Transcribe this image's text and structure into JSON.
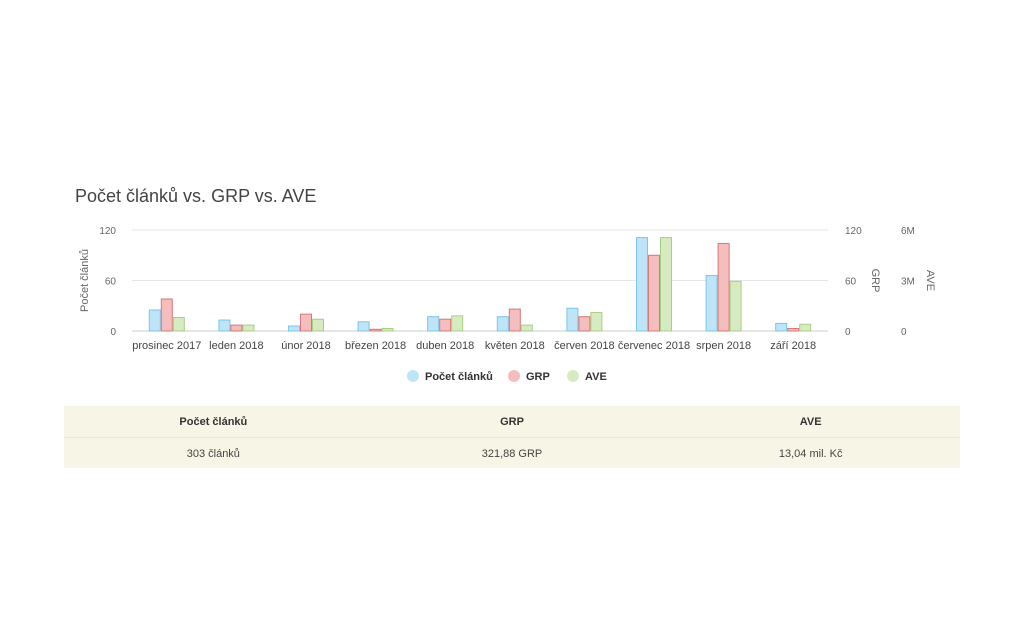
{
  "chart_data": {
    "type": "bar",
    "title": "Počet článků vs. GRP vs. AVE",
    "categories": [
      "prosinec 2017",
      "leden 2018",
      "únor 2018",
      "březen 2018",
      "duben 2018",
      "květen 2018",
      "červen 2018",
      "červenec 2018",
      "srpen 2018",
      "září 2018"
    ],
    "series": [
      {
        "name": "Počet článků",
        "axis": "left",
        "color": "#bde4f7",
        "stroke": "#7cc6e8",
        "values": [
          25,
          13,
          6,
          11,
          17,
          17,
          27,
          111,
          66,
          9
        ]
      },
      {
        "name": "GRP",
        "axis": "right1",
        "color": "#f5bdbd",
        "stroke": "#d97777",
        "values": [
          38,
          7,
          20,
          2,
          14,
          26,
          17,
          90,
          104,
          3
        ]
      },
      {
        "name": "AVE",
        "axis": "right2",
        "color": "#d7ebc2",
        "stroke": "#a7cf85",
        "values": [
          800000,
          350000,
          700000,
          150000,
          900000,
          350000,
          1100000,
          5550000,
          2950000,
          400000
        ]
      }
    ],
    "axes": {
      "left": {
        "label": "Počet článků",
        "ylim": [
          0,
          120
        ],
        "ticks": [
          0,
          60,
          120
        ],
        "tick_labels": [
          "0",
          "60",
          "120"
        ]
      },
      "right1": {
        "label": "GRP",
        "ylim": [
          0,
          120
        ],
        "ticks": [
          0,
          60,
          120
        ],
        "tick_labels": [
          "0",
          "60",
          "120"
        ]
      },
      "right2": {
        "label": "AVE",
        "ylim": [
          0,
          6000000
        ],
        "ticks": [
          0,
          3000000,
          6000000
        ],
        "tick_labels": [
          "0",
          "3M",
          "6M"
        ]
      }
    },
    "grid": true,
    "legend": "bottom-center"
  },
  "summary": {
    "headers": [
      "Počet článků",
      "GRP",
      "AVE"
    ],
    "values": [
      "303 článků",
      "321,88 GRP",
      "13,04 mil. Kč"
    ]
  }
}
